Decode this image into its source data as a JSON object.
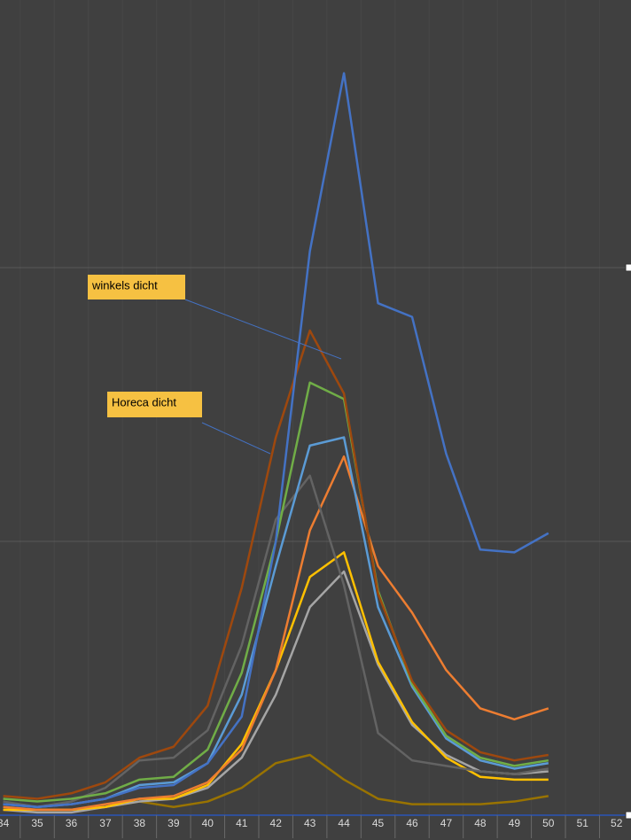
{
  "chart_data": {
    "type": "line",
    "categories": [
      "34",
      "35",
      "36",
      "37",
      "38",
      "39",
      "40",
      "41",
      "42",
      "43",
      "44",
      "45",
      "46",
      "47",
      "48",
      "49",
      "50",
      "51",
      "52"
    ],
    "ylim": [
      0,
      3
    ],
    "yticks": [
      0,
      1,
      2,
      3
    ],
    "grid": true,
    "series": [
      {
        "color": "#997300",
        "values": [
          0.02,
          0.02,
          0.02,
          0.03,
          0.05,
          0.03,
          0.05,
          0.1,
          0.19,
          0.22,
          0.13,
          0.06,
          0.04,
          0.04,
          0.04,
          0.05,
          0.07,
          null,
          null
        ]
      },
      {
        "color": "#a5a5a5",
        "values": [
          0.02,
          0.01,
          0.01,
          0.03,
          0.05,
          0.06,
          0.1,
          0.21,
          0.44,
          0.76,
          0.89,
          0.55,
          0.33,
          0.22,
          0.16,
          0.15,
          0.16,
          null,
          null
        ]
      },
      {
        "color": "#ffc000",
        "values": [
          0.02,
          0.02,
          0.02,
          0.03,
          0.06,
          0.06,
          0.11,
          0.26,
          0.53,
          0.87,
          0.96,
          0.56,
          0.34,
          0.21,
          0.14,
          0.13,
          0.13,
          null,
          null
        ]
      },
      {
        "color": "#ed7d31",
        "values": [
          0.03,
          0.02,
          0.02,
          0.04,
          0.06,
          0.07,
          0.12,
          0.24,
          0.53,
          1.04,
          1.31,
          0.91,
          0.74,
          0.53,
          0.39,
          0.35,
          0.39,
          null,
          null
        ]
      },
      {
        "color": "#636363",
        "values": [
          0.05,
          0.03,
          0.05,
          0.1,
          0.2,
          0.21,
          0.31,
          0.62,
          1.08,
          1.24,
          0.84,
          0.3,
          0.2,
          0.18,
          0.16,
          0.15,
          0.17,
          null,
          null
        ]
      },
      {
        "color": "#5b9bd5",
        "values": [
          0.04,
          0.03,
          0.04,
          0.06,
          0.11,
          0.12,
          0.19,
          0.44,
          0.91,
          1.35,
          1.38,
          0.76,
          0.47,
          0.28,
          0.2,
          0.17,
          0.19,
          null,
          null
        ]
      },
      {
        "color": "#70ad47",
        "values": [
          0.06,
          0.05,
          0.06,
          0.08,
          0.13,
          0.14,
          0.24,
          0.52,
          1.0,
          1.58,
          1.52,
          0.82,
          0.48,
          0.29,
          0.21,
          0.18,
          0.2,
          null,
          null
        ]
      },
      {
        "color": "#9e480e",
        "values": [
          0.07,
          0.06,
          0.08,
          0.12,
          0.21,
          0.25,
          0.4,
          0.83,
          1.38,
          1.77,
          1.54,
          0.81,
          0.49,
          0.31,
          0.23,
          0.2,
          0.22,
          null,
          null
        ]
      },
      {
        "color": "#4472c4",
        "values": [
          0.04,
          0.03,
          0.04,
          0.06,
          0.1,
          0.11,
          0.19,
          0.36,
          1.0,
          2.06,
          2.71,
          1.87,
          1.82,
          1.32,
          0.97,
          0.96,
          1.03,
          null,
          null
        ]
      }
    ],
    "annotations": [
      "winkels dicht",
      "Horeca dicht"
    ]
  }
}
